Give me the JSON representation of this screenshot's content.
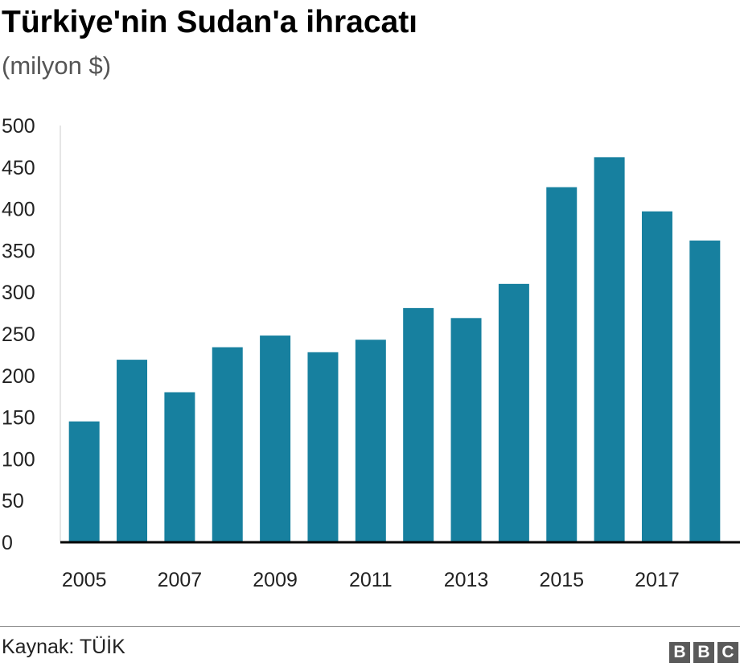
{
  "header": {
    "title": "Türkiye'nin Sudan'a ihracatı",
    "subtitle": "(milyon $)"
  },
  "footer": {
    "source": "Kaynak: TÜİK",
    "logo_letters": [
      "B",
      "B",
      "C"
    ]
  },
  "colors": {
    "bar": "#17809f",
    "axis": "#000000",
    "grid_axis": "#cccccc"
  },
  "chart_data": {
    "type": "bar",
    "title": "Türkiye'nin Sudan'a ihracatı",
    "ylabel": "(milyon $)",
    "xlabel": "",
    "categories": [
      "2005",
      "2006",
      "2007",
      "2008",
      "2009",
      "2010",
      "2011",
      "2012",
      "2013",
      "2014",
      "2015",
      "2016",
      "2017",
      "2018"
    ],
    "x_tick_labels": [
      "2005",
      "2007",
      "2009",
      "2011",
      "2013",
      "2015",
      "2017"
    ],
    "values": [
      145,
      219,
      180,
      234,
      248,
      228,
      243,
      281,
      269,
      310,
      426,
      462,
      397,
      362
    ],
    "ylim": [
      0,
      500
    ],
    "y_ticks": [
      0,
      50,
      100,
      150,
      200,
      250,
      300,
      350,
      400,
      450,
      500
    ],
    "grid": false,
    "legend": "none"
  }
}
